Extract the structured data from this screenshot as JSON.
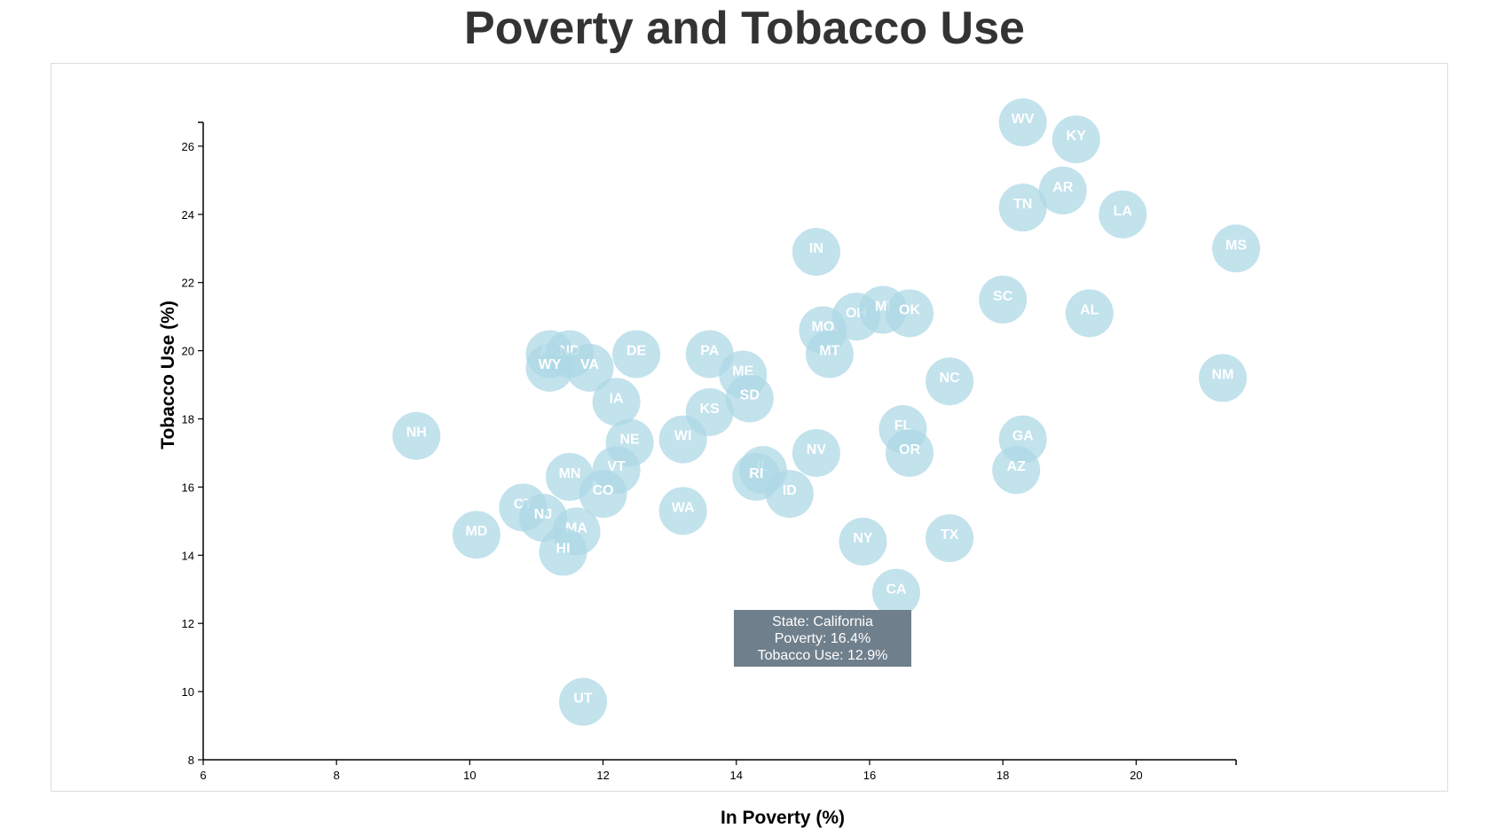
{
  "title": "Poverty and Tobacco Use",
  "chart_data": {
    "type": "scatter",
    "title": "Poverty and Tobacco Use",
    "xlabel": "In Poverty (%)",
    "ylabel": "Tobacco Use (%)",
    "xlim": [
      6,
      21.5
    ],
    "ylim": [
      8,
      26.7
    ],
    "x_ticks": [
      6,
      8,
      10,
      12,
      14,
      16,
      18,
      20
    ],
    "y_ticks": [
      8,
      10,
      12,
      14,
      16,
      18,
      20,
      22,
      24,
      26
    ],
    "marker_color": "#add8e6",
    "grid": false,
    "points": [
      {
        "label": "AK",
        "x": 11.2,
        "y": 19.9
      },
      {
        "label": "ND",
        "x": 11.5,
        "y": 19.9
      },
      {
        "label": "WY",
        "x": 11.2,
        "y": 19.5
      },
      {
        "label": "VA",
        "x": 11.8,
        "y": 19.5
      },
      {
        "label": "DE",
        "x": 12.5,
        "y": 19.9
      },
      {
        "label": "PA",
        "x": 13.6,
        "y": 19.9
      },
      {
        "label": "ME",
        "x": 14.1,
        "y": 19.3
      },
      {
        "label": "SD",
        "x": 14.2,
        "y": 18.6
      },
      {
        "label": "IA",
        "x": 12.2,
        "y": 18.5
      },
      {
        "label": "KS",
        "x": 13.6,
        "y": 18.2
      },
      {
        "label": "NH",
        "x": 9.2,
        "y": 17.5
      },
      {
        "label": "NE",
        "x": 12.4,
        "y": 17.3
      },
      {
        "label": "WI",
        "x": 13.2,
        "y": 17.4
      },
      {
        "label": "MN",
        "x": 11.5,
        "y": 16.3
      },
      {
        "label": "VT",
        "x": 12.2,
        "y": 16.5
      },
      {
        "label": "CO",
        "x": 12.0,
        "y": 15.8
      },
      {
        "label": "CT",
        "x": 10.8,
        "y": 15.4
      },
      {
        "label": "NJ",
        "x": 11.1,
        "y": 15.1
      },
      {
        "label": "MD",
        "x": 10.1,
        "y": 14.6
      },
      {
        "label": "MA",
        "x": 11.6,
        "y": 14.7
      },
      {
        "label": "HI",
        "x": 11.4,
        "y": 14.1
      },
      {
        "label": "WA",
        "x": 13.2,
        "y": 15.3
      },
      {
        "label": "IL",
        "x": 14.4,
        "y": 16.5
      },
      {
        "label": "RI",
        "x": 14.3,
        "y": 16.3
      },
      {
        "label": "ID",
        "x": 14.8,
        "y": 15.8
      },
      {
        "label": "UT",
        "x": 11.7,
        "y": 9.7
      },
      {
        "label": "IN",
        "x": 15.2,
        "y": 22.9
      },
      {
        "label": "MO",
        "x": 15.3,
        "y": 20.6
      },
      {
        "label": "OH",
        "x": 15.8,
        "y": 21.0
      },
      {
        "label": "MI",
        "x": 16.2,
        "y": 21.2
      },
      {
        "label": "OK",
        "x": 16.6,
        "y": 21.1
      },
      {
        "label": "MT",
        "x": 15.4,
        "y": 19.9
      },
      {
        "label": "NV",
        "x": 15.2,
        "y": 17.0
      },
      {
        "label": "FL",
        "x": 16.5,
        "y": 17.7
      },
      {
        "label": "OR",
        "x": 16.6,
        "y": 17.0
      },
      {
        "label": "NY",
        "x": 15.9,
        "y": 14.4
      },
      {
        "label": "CA",
        "x": 16.4,
        "y": 12.9
      },
      {
        "label": "TX",
        "x": 17.2,
        "y": 14.5
      },
      {
        "label": "NC",
        "x": 17.2,
        "y": 19.1
      },
      {
        "label": "SC",
        "x": 18.0,
        "y": 21.5
      },
      {
        "label": "GA",
        "x": 18.3,
        "y": 17.4
      },
      {
        "label": "AZ",
        "x": 18.2,
        "y": 16.5
      },
      {
        "label": "WV",
        "x": 18.3,
        "y": 26.7
      },
      {
        "label": "KY",
        "x": 19.1,
        "y": 26.2
      },
      {
        "label": "AR",
        "x": 18.9,
        "y": 24.7
      },
      {
        "label": "TN",
        "x": 18.3,
        "y": 24.2
      },
      {
        "label": "LA",
        "x": 19.8,
        "y": 24.0
      },
      {
        "label": "AL",
        "x": 19.3,
        "y": 21.1
      },
      {
        "label": "MS",
        "x": 21.5,
        "y": 23.0
      },
      {
        "label": "NM",
        "x": 21.3,
        "y": 19.2
      }
    ],
    "tooltip": {
      "state_line": "State: California",
      "poverty_line": "Poverty: 16.4%",
      "tobacco_line": "Tobacco Use: 12.9%",
      "x": 16.4,
      "y": 12.9
    }
  }
}
